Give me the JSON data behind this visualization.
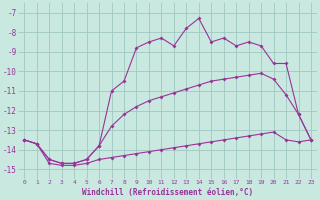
{
  "xlabel": "Windchill (Refroidissement éolien,°C)",
  "xlim": [
    -0.5,
    23.5
  ],
  "ylim": [
    -15.5,
    -6.5
  ],
  "yticks": [
    -15,
    -14,
    -13,
    -12,
    -11,
    -10,
    -9,
    -8,
    -7
  ],
  "xticks": [
    0,
    1,
    2,
    3,
    4,
    5,
    6,
    7,
    8,
    9,
    10,
    11,
    12,
    13,
    14,
    15,
    16,
    17,
    18,
    19,
    20,
    21,
    22,
    23
  ],
  "bg_color": "#c8e8e0",
  "grid_color": "#a0c8c0",
  "line_color": "#993399",
  "line1_x": [
    0,
    1,
    2,
    3,
    4,
    5,
    6,
    7,
    8,
    9,
    10,
    11,
    12,
    13,
    14,
    15,
    16,
    17,
    18,
    19,
    20,
    21,
    22,
    23
  ],
  "line1_y": [
    -13.5,
    -13.7,
    -14.5,
    -14.7,
    -14.7,
    -14.5,
    -13.8,
    -11.0,
    -10.5,
    -8.8,
    -8.5,
    -8.3,
    -8.7,
    -7.8,
    -7.3,
    -8.5,
    -8.3,
    -8.7,
    -8.5,
    -8.7,
    -9.6,
    -9.6,
    -12.2,
    -13.5
  ],
  "line2_x": [
    0,
    1,
    2,
    3,
    4,
    5,
    6,
    7,
    8,
    9,
    10,
    11,
    12,
    13,
    14,
    15,
    16,
    17,
    18,
    19,
    20,
    21,
    22,
    23
  ],
  "line2_y": [
    -13.5,
    -13.7,
    -14.5,
    -14.7,
    -14.7,
    -14.5,
    -13.8,
    -12.8,
    -12.2,
    -11.8,
    -11.5,
    -11.3,
    -11.1,
    -10.9,
    -10.7,
    -10.5,
    -10.4,
    -10.3,
    -10.2,
    -10.1,
    -10.4,
    -11.2,
    -12.2,
    -13.5
  ],
  "line3_x": [
    0,
    1,
    2,
    3,
    4,
    5,
    6,
    7,
    8,
    9,
    10,
    11,
    12,
    13,
    14,
    15,
    16,
    17,
    18,
    19,
    20,
    21,
    22,
    23
  ],
  "line3_y": [
    -13.5,
    -13.7,
    -14.7,
    -14.8,
    -14.8,
    -14.7,
    -14.5,
    -14.4,
    -14.3,
    -14.2,
    -14.1,
    -14.0,
    -13.9,
    -13.8,
    -13.7,
    -13.6,
    -13.5,
    -13.4,
    -13.3,
    -13.2,
    -13.1,
    -13.5,
    -13.6,
    -13.5
  ]
}
